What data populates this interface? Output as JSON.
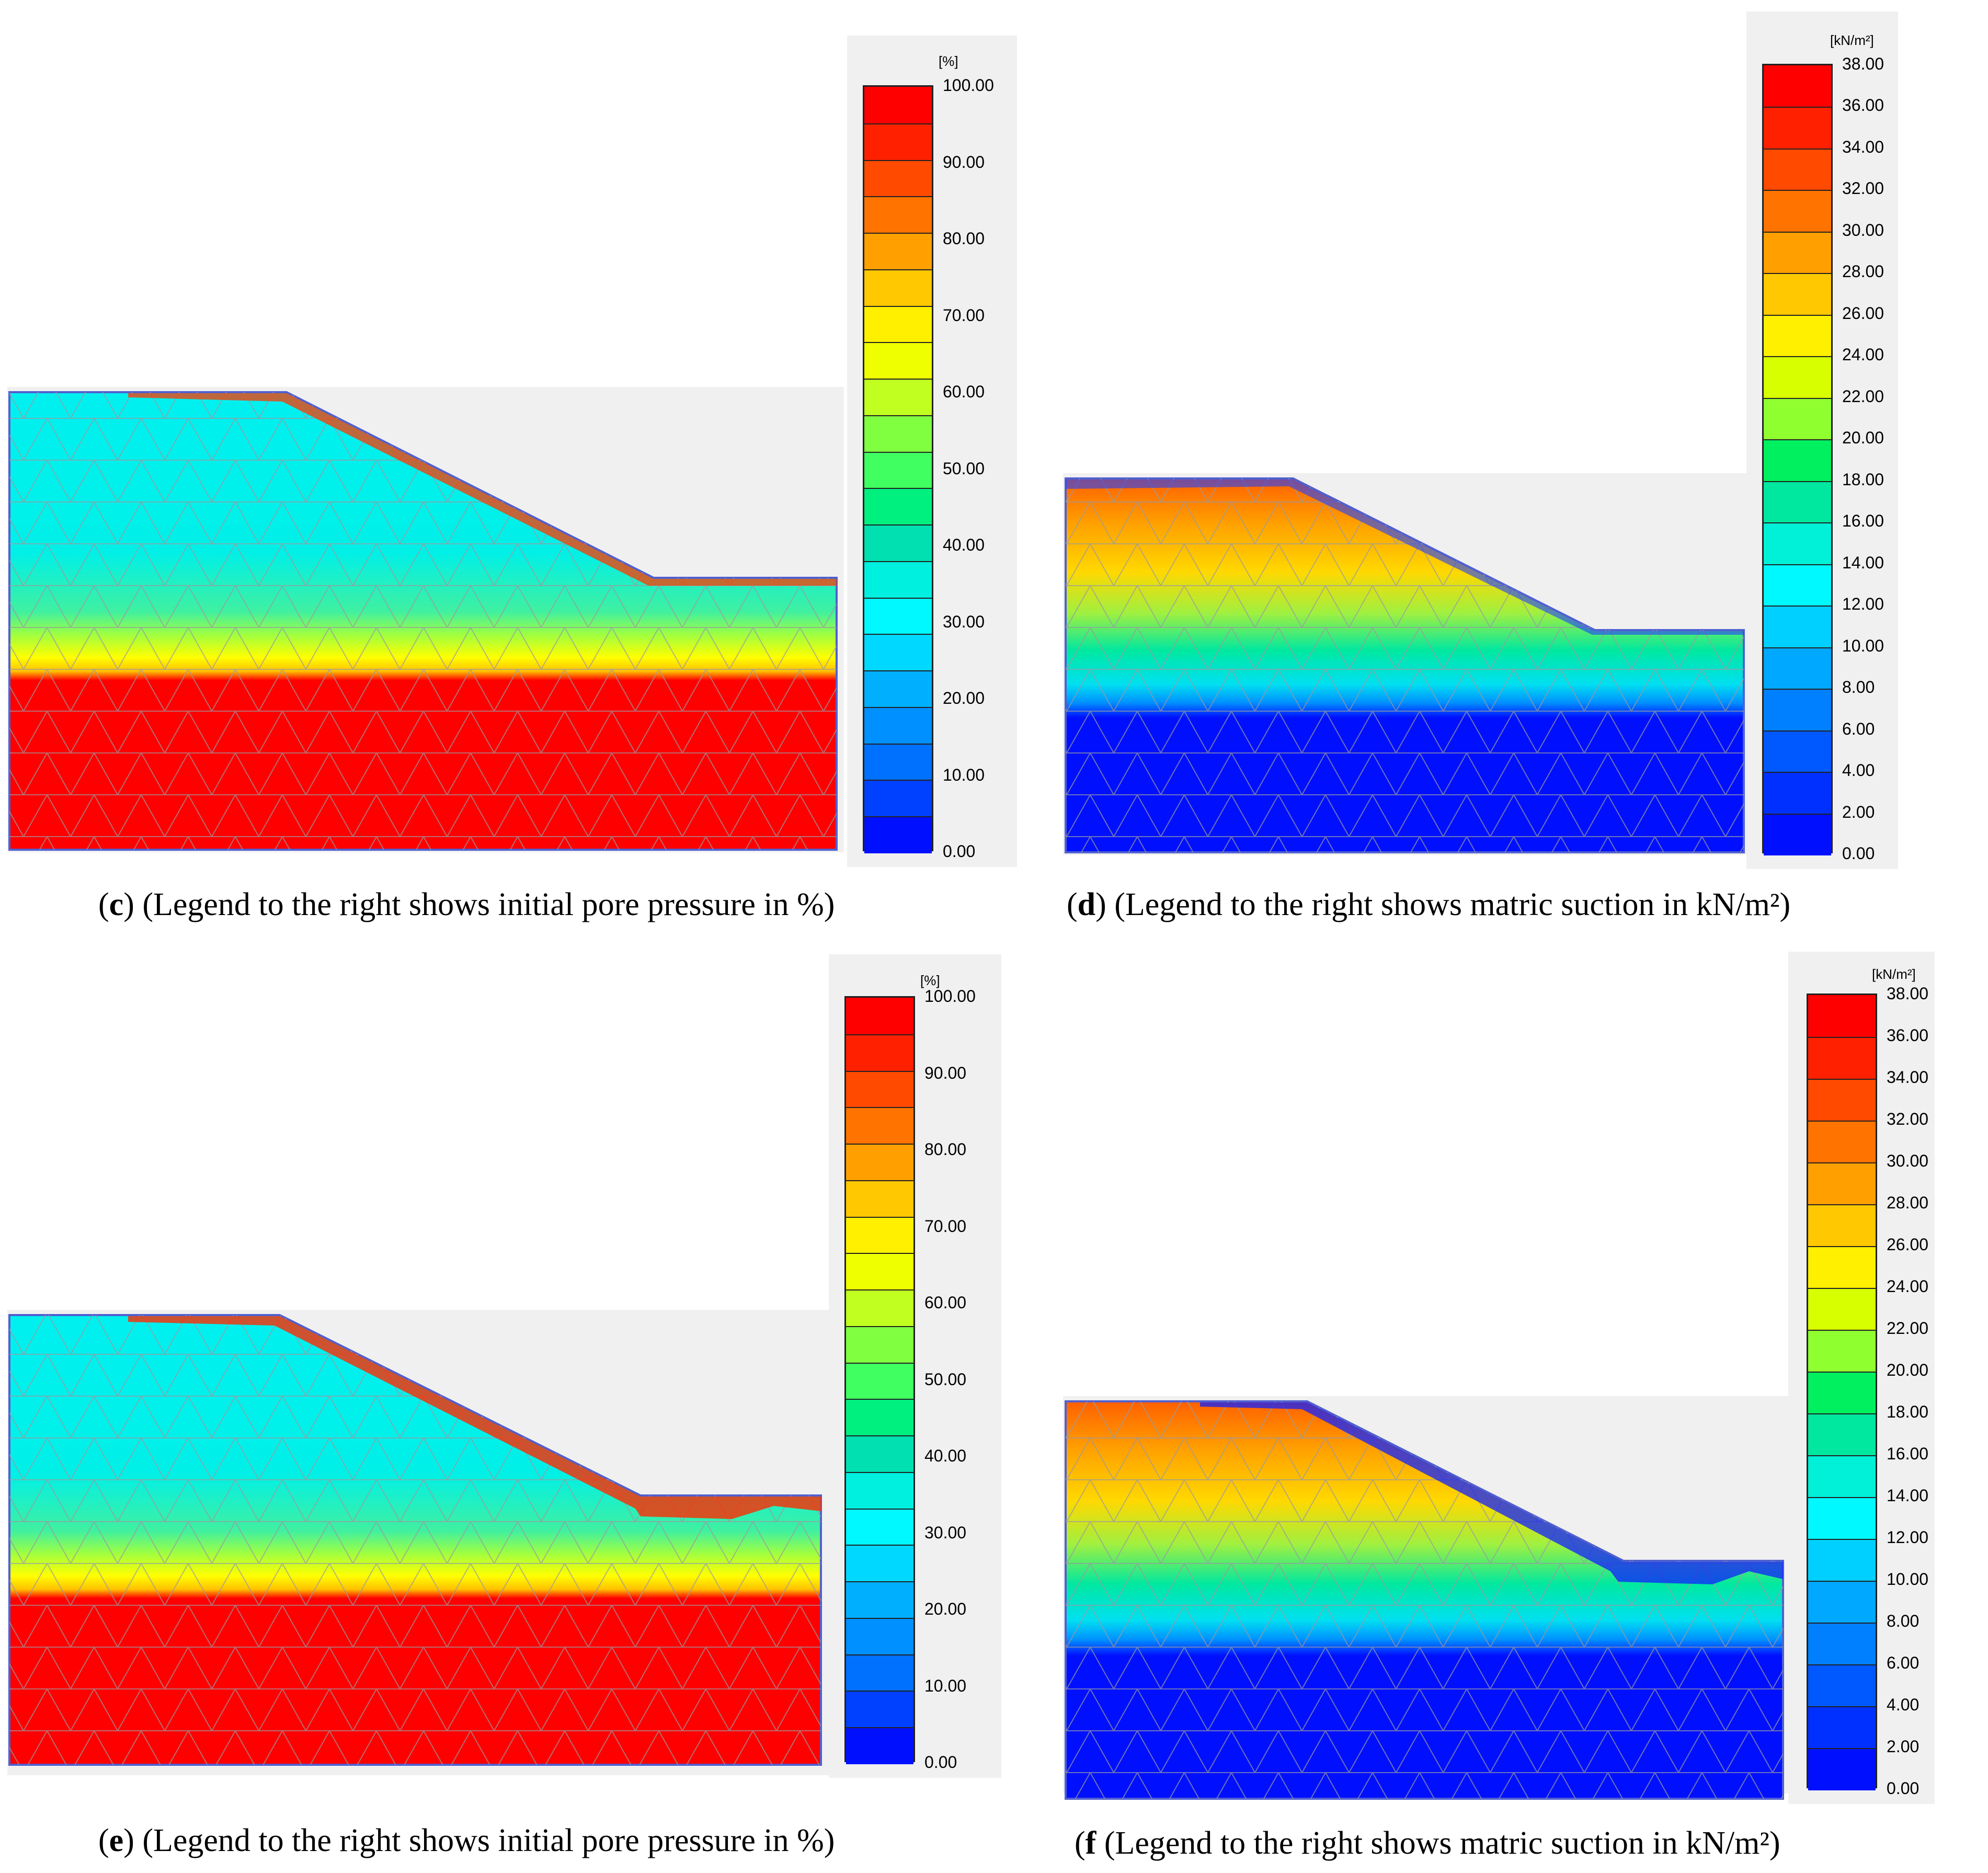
{
  "panels": [
    {
      "id": "c",
      "letter": "c",
      "caption": ") (Legend to the right shows initial pore pressure in %)",
      "unit": "[%]",
      "ticks": [
        "100.00",
        "90.00",
        "80.00",
        "70.00",
        "60.00",
        "50.00",
        "40.00",
        "30.00",
        "20.00",
        "10.00",
        "0.00"
      ],
      "minor_bands": 20,
      "mesh_fraction_red_boundary": 0.55,
      "colors": [
        "#ff0000",
        "#ff2000",
        "#ff4a00",
        "#ff7300",
        "#ffa000",
        "#ffc800",
        "#fff000",
        "#f0ff00",
        "#c0ff20",
        "#80ff40",
        "#40ff60",
        "#00f080",
        "#00e0b0",
        "#00f0e0",
        "#00f8ff",
        "#00d8ff",
        "#00b0ff",
        "#0090ff",
        "#0070ff",
        "#0040ff",
        "#0010ff"
      ]
    },
    {
      "id": "d",
      "letter": "d",
      "caption": ") (Legend to the right shows matric suction in kN/m²)",
      "unit": "[kN/m²]",
      "ticks": [
        "38.00",
        "36.00",
        "34.00",
        "32.00",
        "30.00",
        "28.00",
        "26.00",
        "24.00",
        "22.00",
        "20.00",
        "18.00",
        "16.00",
        "14.00",
        "12.00",
        "10.00",
        "8.00",
        "6.00",
        "4.00",
        "2.00",
        "0.00"
      ],
      "minor_bands": 19,
      "colors": [
        "#ff0000",
        "#ff2000",
        "#ff4a00",
        "#ff7300",
        "#ffa000",
        "#ffc800",
        "#fff000",
        "#d8ff00",
        "#90ff30",
        "#00f060",
        "#00e8a0",
        "#00f0d8",
        "#00f8ff",
        "#00d0ff",
        "#00a8ff",
        "#0080ff",
        "#0058ff",
        "#0030ff",
        "#0010ff"
      ]
    },
    {
      "id": "e",
      "letter": "e",
      "caption": ") (Legend to the right shows initial pore pressure in %)",
      "unit": "[%]",
      "ticks": [
        "100.00",
        "90.00",
        "80.00",
        "70.00",
        "60.00",
        "50.00",
        "40.00",
        "30.00",
        "20.00",
        "10.00",
        "0.00"
      ],
      "minor_bands": 20,
      "colors": [
        "#ff0000",
        "#ff2000",
        "#ff4a00",
        "#ff7300",
        "#ffa000",
        "#ffc800",
        "#fff000",
        "#f0ff00",
        "#c0ff20",
        "#80ff40",
        "#40ff60",
        "#00f080",
        "#00e0b0",
        "#00f0e0",
        "#00f8ff",
        "#00d8ff",
        "#00b0ff",
        "#0090ff",
        "#0070ff",
        "#0040ff",
        "#0010ff"
      ]
    },
    {
      "id": "f",
      "letter": "f",
      "caption": " (Legend to the right shows matric suction in kN/m²)",
      "unit": "[kN/m²]",
      "ticks": [
        "38.00",
        "36.00",
        "34.00",
        "32.00",
        "30.00",
        "28.00",
        "26.00",
        "24.00",
        "22.00",
        "20.00",
        "18.00",
        "16.00",
        "14.00",
        "12.00",
        "10.00",
        "8.00",
        "6.00",
        "4.00",
        "2.00",
        "0.00"
      ],
      "minor_bands": 19,
      "colors": [
        "#ff0000",
        "#ff2000",
        "#ff4a00",
        "#ff7300",
        "#ffa000",
        "#ffc800",
        "#fff000",
        "#d8ff00",
        "#90ff30",
        "#00f060",
        "#00e8a0",
        "#00f0d8",
        "#00f8ff",
        "#00d0ff",
        "#00a8ff",
        "#0080ff",
        "#0058ff",
        "#0030ff",
        "#0010ff"
      ]
    }
  ]
}
